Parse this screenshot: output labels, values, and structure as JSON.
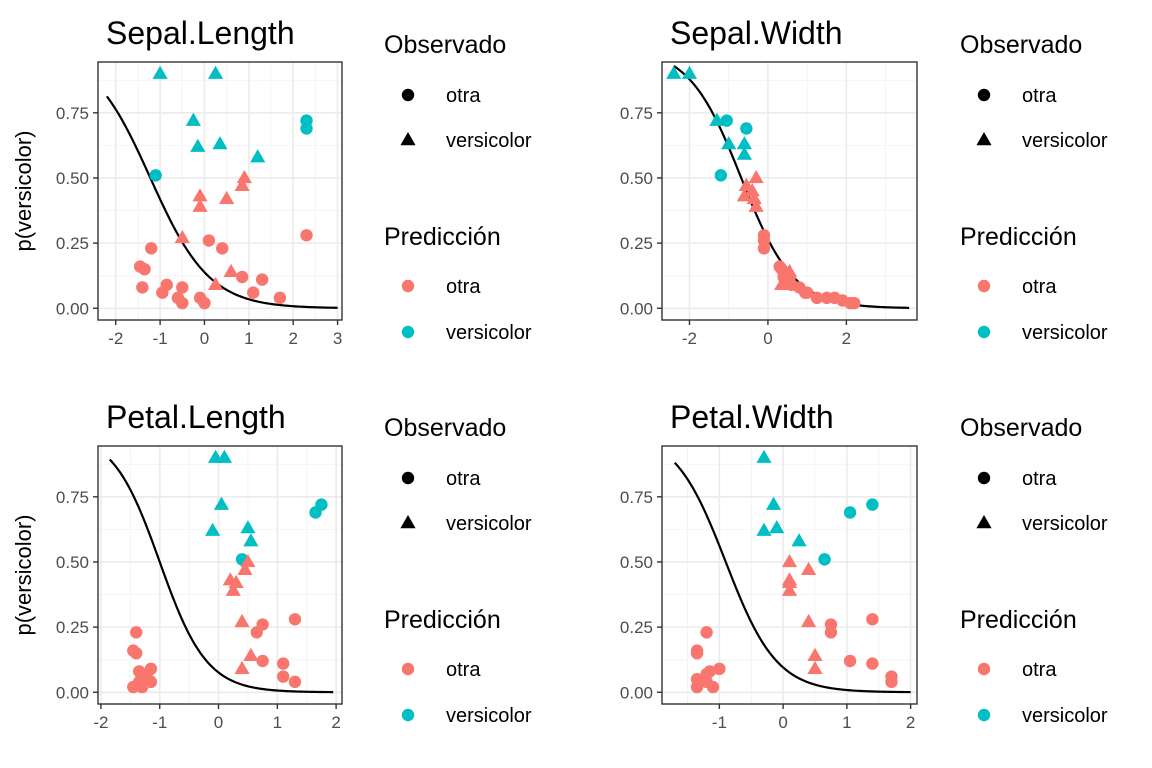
{
  "colors": {
    "otra": "#F8766D",
    "versicolor": "#00BFC4",
    "curve": "#000000",
    "grid_major": "#ebebeb",
    "grid_minor": "#f4f4f4",
    "border": "#333333"
  },
  "y_label": "p(versicolor)",
  "legend": {
    "observed_title": "Observado",
    "predicted_title": "Predicción",
    "items": [
      "otra",
      "versicolor"
    ]
  },
  "chart_data": [
    {
      "type": "scatter",
      "title": "Sepal.Length",
      "ylabel": "p(versicolor)",
      "xlim": [
        -2.4,
        3.1
      ],
      "ylim": [
        -0.045,
        0.945
      ],
      "xticks": [
        -2,
        -1,
        0,
        1,
        2,
        3
      ],
      "yticks": [
        0,
        0.25,
        0.5,
        0.75
      ],
      "ytick_labels": [
        "0.00",
        "0.25",
        "0.50",
        "0.75"
      ],
      "grid": true,
      "legend_placement": "right",
      "curve": {
        "a": -1.22,
        "b": -1.5,
        "x_range": [
          -2.2,
          3.0
        ]
      },
      "points": [
        {
          "x": -1.0,
          "y": 0.9,
          "obs": "versicolor",
          "pred": "versicolor"
        },
        {
          "x": 0.25,
          "y": 0.9,
          "obs": "versicolor",
          "pred": "versicolor"
        },
        {
          "x": -0.25,
          "y": 0.72,
          "obs": "versicolor",
          "pred": "versicolor"
        },
        {
          "x": -0.15,
          "y": 0.62,
          "obs": "versicolor",
          "pred": "versicolor"
        },
        {
          "x": 0.35,
          "y": 0.63,
          "obs": "versicolor",
          "pred": "versicolor"
        },
        {
          "x": 1.2,
          "y": 0.58,
          "obs": "versicolor",
          "pred": "versicolor"
        },
        {
          "x": 2.3,
          "y": 0.72,
          "obs": "otra",
          "pred": "versicolor"
        },
        {
          "x": 2.3,
          "y": 0.69,
          "obs": "otra",
          "pred": "versicolor"
        },
        {
          "x": -1.1,
          "y": 0.51,
          "obs": "otra",
          "pred": "versicolor"
        },
        {
          "x": 0.9,
          "y": 0.5,
          "obs": "versicolor",
          "pred": "otra"
        },
        {
          "x": 0.85,
          "y": 0.47,
          "obs": "versicolor",
          "pred": "otra"
        },
        {
          "x": -0.1,
          "y": 0.43,
          "obs": "versicolor",
          "pred": "otra"
        },
        {
          "x": 0.5,
          "y": 0.42,
          "obs": "versicolor",
          "pred": "otra"
        },
        {
          "x": -0.1,
          "y": 0.39,
          "obs": "versicolor",
          "pred": "otra"
        },
        {
          "x": -0.5,
          "y": 0.27,
          "obs": "versicolor",
          "pred": "otra"
        },
        {
          "x": 0.6,
          "y": 0.14,
          "obs": "versicolor",
          "pred": "otra"
        },
        {
          "x": 0.25,
          "y": 0.09,
          "obs": "versicolor",
          "pred": "otra"
        },
        {
          "x": 2.3,
          "y": 0.28,
          "obs": "otra",
          "pred": "otra"
        },
        {
          "x": 0.1,
          "y": 0.26,
          "obs": "otra",
          "pred": "otra"
        },
        {
          "x": -1.2,
          "y": 0.23,
          "obs": "otra",
          "pred": "otra"
        },
        {
          "x": 0.4,
          "y": 0.23,
          "obs": "otra",
          "pred": "otra"
        },
        {
          "x": -1.45,
          "y": 0.16,
          "obs": "otra",
          "pred": "otra"
        },
        {
          "x": -1.35,
          "y": 0.15,
          "obs": "otra",
          "pred": "otra"
        },
        {
          "x": 0.85,
          "y": 0.12,
          "obs": "otra",
          "pred": "otra"
        },
        {
          "x": 1.3,
          "y": 0.11,
          "obs": "otra",
          "pred": "otra"
        },
        {
          "x": -0.85,
          "y": 0.09,
          "obs": "otra",
          "pred": "otra"
        },
        {
          "x": -1.4,
          "y": 0.08,
          "obs": "otra",
          "pred": "otra"
        },
        {
          "x": -0.5,
          "y": 0.08,
          "obs": "otra",
          "pred": "otra"
        },
        {
          "x": -0.95,
          "y": 0.06,
          "obs": "otra",
          "pred": "otra"
        },
        {
          "x": 1.1,
          "y": 0.06,
          "obs": "otra",
          "pred": "otra"
        },
        {
          "x": -0.6,
          "y": 0.04,
          "obs": "otra",
          "pred": "otra"
        },
        {
          "x": -0.1,
          "y": 0.04,
          "obs": "otra",
          "pred": "otra"
        },
        {
          "x": 1.7,
          "y": 0.04,
          "obs": "otra",
          "pred": "otra"
        },
        {
          "x": -0.5,
          "y": 0.02,
          "obs": "otra",
          "pred": "otra"
        },
        {
          "x": 0.0,
          "y": 0.02,
          "obs": "otra",
          "pred": "otra"
        }
      ]
    },
    {
      "type": "scatter",
      "title": "Sepal.Width",
      "ylabel": "",
      "xlim": [
        -2.7,
        3.8
      ],
      "ylim": [
        -0.045,
        0.945
      ],
      "xticks": [
        -2,
        0,
        2
      ],
      "yticks": [
        0,
        0.25,
        0.5,
        0.75
      ],
      "ytick_labels": [
        "0.00",
        "0.25",
        "0.50",
        "0.75"
      ],
      "grid": true,
      "legend_placement": "right",
      "curve": {
        "a": -0.68,
        "b": -1.5,
        "x_range": [
          -2.4,
          3.6
        ]
      },
      "points": [
        {
          "x": -2.4,
          "y": 0.9,
          "obs": "versicolor",
          "pred": "versicolor"
        },
        {
          "x": -2.0,
          "y": 0.9,
          "obs": "versicolor",
          "pred": "versicolor"
        },
        {
          "x": -1.3,
          "y": 0.72,
          "obs": "versicolor",
          "pred": "versicolor"
        },
        {
          "x": -1.05,
          "y": 0.72,
          "obs": "otra",
          "pred": "versicolor"
        },
        {
          "x": -0.55,
          "y": 0.69,
          "obs": "otra",
          "pred": "versicolor"
        },
        {
          "x": -1.0,
          "y": 0.63,
          "obs": "versicolor",
          "pred": "versicolor"
        },
        {
          "x": -0.6,
          "y": 0.63,
          "obs": "versicolor",
          "pred": "versicolor"
        },
        {
          "x": -0.6,
          "y": 0.59,
          "obs": "versicolor",
          "pred": "versicolor"
        },
        {
          "x": -1.2,
          "y": 0.51,
          "obs": "otra",
          "pred": "versicolor"
        },
        {
          "x": -0.3,
          "y": 0.5,
          "obs": "versicolor",
          "pred": "otra"
        },
        {
          "x": -0.55,
          "y": 0.47,
          "obs": "versicolor",
          "pred": "otra"
        },
        {
          "x": -0.4,
          "y": 0.45,
          "obs": "versicolor",
          "pred": "otra"
        },
        {
          "x": -0.6,
          "y": 0.43,
          "obs": "versicolor",
          "pred": "otra"
        },
        {
          "x": -0.35,
          "y": 0.42,
          "obs": "versicolor",
          "pred": "otra"
        },
        {
          "x": -0.3,
          "y": 0.39,
          "obs": "versicolor",
          "pred": "otra"
        },
        {
          "x": -0.1,
          "y": 0.28,
          "obs": "otra",
          "pred": "otra"
        },
        {
          "x": -0.1,
          "y": 0.26,
          "obs": "otra",
          "pred": "otra"
        },
        {
          "x": -0.1,
          "y": 0.23,
          "obs": "otra",
          "pred": "otra"
        },
        {
          "x": 0.3,
          "y": 0.16,
          "obs": "otra",
          "pred": "otra"
        },
        {
          "x": 0.35,
          "y": 0.15,
          "obs": "otra",
          "pred": "otra"
        },
        {
          "x": 0.55,
          "y": 0.14,
          "obs": "versicolor",
          "pred": "otra"
        },
        {
          "x": 0.4,
          "y": 0.12,
          "obs": "otra",
          "pred": "otra"
        },
        {
          "x": 0.55,
          "y": 0.11,
          "obs": "otra",
          "pred": "otra"
        },
        {
          "x": 0.35,
          "y": 0.09,
          "obs": "versicolor",
          "pred": "otra"
        },
        {
          "x": 0.6,
          "y": 0.09,
          "obs": "otra",
          "pred": "otra"
        },
        {
          "x": 0.8,
          "y": 0.08,
          "obs": "otra",
          "pred": "otra"
        },
        {
          "x": 0.95,
          "y": 0.06,
          "obs": "otra",
          "pred": "otra"
        },
        {
          "x": 1.0,
          "y": 0.06,
          "obs": "otra",
          "pred": "otra"
        },
        {
          "x": 1.25,
          "y": 0.04,
          "obs": "otra",
          "pred": "otra"
        },
        {
          "x": 1.5,
          "y": 0.04,
          "obs": "otra",
          "pred": "otra"
        },
        {
          "x": 1.7,
          "y": 0.04,
          "obs": "otra",
          "pred": "otra"
        },
        {
          "x": 1.9,
          "y": 0.03,
          "obs": "otra",
          "pred": "otra"
        },
        {
          "x": 2.1,
          "y": 0.02,
          "obs": "otra",
          "pred": "otra"
        },
        {
          "x": 2.2,
          "y": 0.02,
          "obs": "otra",
          "pred": "otra"
        }
      ]
    },
    {
      "type": "scatter",
      "title": "Petal.Length",
      "ylabel": "p(versicolor)",
      "xlim": [
        -2.05,
        2.1
      ],
      "ylim": [
        -0.045,
        0.945
      ],
      "xticks": [
        -2,
        -1,
        0,
        1,
        2
      ],
      "yticks": [
        0,
        0.25,
        0.5,
        0.75
      ],
      "ytick_labels": [
        "0.00",
        "0.25",
        "0.50",
        "0.75"
      ],
      "grid": true,
      "legend_placement": "right",
      "curve": {
        "a": -1.0,
        "b": -2.5,
        "x_range": [
          -1.85,
          1.95
        ]
      },
      "points": [
        {
          "x": -0.05,
          "y": 0.9,
          "obs": "versicolor",
          "pred": "versicolor"
        },
        {
          "x": 0.1,
          "y": 0.9,
          "obs": "versicolor",
          "pred": "versicolor"
        },
        {
          "x": 0.05,
          "y": 0.72,
          "obs": "versicolor",
          "pred": "versicolor"
        },
        {
          "x": -0.1,
          "y": 0.62,
          "obs": "versicolor",
          "pred": "versicolor"
        },
        {
          "x": 0.5,
          "y": 0.63,
          "obs": "versicolor",
          "pred": "versicolor"
        },
        {
          "x": 0.55,
          "y": 0.58,
          "obs": "versicolor",
          "pred": "versicolor"
        },
        {
          "x": 1.75,
          "y": 0.72,
          "obs": "otra",
          "pred": "versicolor"
        },
        {
          "x": 1.65,
          "y": 0.69,
          "obs": "otra",
          "pred": "versicolor"
        },
        {
          "x": 0.4,
          "y": 0.51,
          "obs": "otra",
          "pred": "versicolor"
        },
        {
          "x": 0.5,
          "y": 0.5,
          "obs": "versicolor",
          "pred": "otra"
        },
        {
          "x": 0.45,
          "y": 0.47,
          "obs": "versicolor",
          "pred": "otra"
        },
        {
          "x": 0.2,
          "y": 0.43,
          "obs": "versicolor",
          "pred": "otra"
        },
        {
          "x": 0.3,
          "y": 0.42,
          "obs": "versicolor",
          "pred": "otra"
        },
        {
          "x": 0.25,
          "y": 0.39,
          "obs": "versicolor",
          "pred": "otra"
        },
        {
          "x": 0.4,
          "y": 0.27,
          "obs": "versicolor",
          "pred": "otra"
        },
        {
          "x": 0.55,
          "y": 0.14,
          "obs": "versicolor",
          "pred": "otra"
        },
        {
          "x": 0.4,
          "y": 0.09,
          "obs": "versicolor",
          "pred": "otra"
        },
        {
          "x": 1.3,
          "y": 0.28,
          "obs": "otra",
          "pred": "otra"
        },
        {
          "x": 0.75,
          "y": 0.26,
          "obs": "otra",
          "pred": "otra"
        },
        {
          "x": 0.65,
          "y": 0.23,
          "obs": "otra",
          "pred": "otra"
        },
        {
          "x": -1.4,
          "y": 0.23,
          "obs": "otra",
          "pred": "otra"
        },
        {
          "x": -1.45,
          "y": 0.16,
          "obs": "otra",
          "pred": "otra"
        },
        {
          "x": -1.4,
          "y": 0.15,
          "obs": "otra",
          "pred": "otra"
        },
        {
          "x": 0.75,
          "y": 0.12,
          "obs": "otra",
          "pred": "otra"
        },
        {
          "x": 1.1,
          "y": 0.11,
          "obs": "otra",
          "pred": "otra"
        },
        {
          "x": -1.15,
          "y": 0.09,
          "obs": "otra",
          "pred": "otra"
        },
        {
          "x": -1.35,
          "y": 0.08,
          "obs": "otra",
          "pred": "otra"
        },
        {
          "x": -1.3,
          "y": 0.06,
          "obs": "otra",
          "pred": "otra"
        },
        {
          "x": 1.1,
          "y": 0.06,
          "obs": "otra",
          "pred": "otra"
        },
        {
          "x": -1.2,
          "y": 0.05,
          "obs": "otra",
          "pred": "otra"
        },
        {
          "x": -1.35,
          "y": 0.04,
          "obs": "otra",
          "pred": "otra"
        },
        {
          "x": -1.15,
          "y": 0.04,
          "obs": "otra",
          "pred": "otra"
        },
        {
          "x": 1.3,
          "y": 0.04,
          "obs": "otra",
          "pred": "otra"
        },
        {
          "x": -1.45,
          "y": 0.02,
          "obs": "otra",
          "pred": "otra"
        },
        {
          "x": -1.3,
          "y": 0.02,
          "obs": "otra",
          "pred": "otra"
        }
      ]
    },
    {
      "type": "scatter",
      "title": "Petal.Width",
      "ylabel": "",
      "xlim": [
        -1.9,
        2.1
      ],
      "ylim": [
        -0.045,
        0.945
      ],
      "xticks": [
        -1,
        0,
        1,
        2
      ],
      "yticks": [
        0,
        0.25,
        0.5,
        0.75
      ],
      "ytick_labels": [
        "0.00",
        "0.25",
        "0.50",
        "0.75"
      ],
      "grid": true,
      "legend_placement": "right",
      "curve": {
        "a": -0.9,
        "b": -2.5,
        "x_range": [
          -1.7,
          2.0
        ]
      },
      "points": [
        {
          "x": -0.3,
          "y": 0.9,
          "obs": "versicolor",
          "pred": "versicolor"
        },
        {
          "x": -0.15,
          "y": 0.72,
          "obs": "versicolor",
          "pred": "versicolor"
        },
        {
          "x": -0.3,
          "y": 0.62,
          "obs": "versicolor",
          "pred": "versicolor"
        },
        {
          "x": -0.1,
          "y": 0.63,
          "obs": "versicolor",
          "pred": "versicolor"
        },
        {
          "x": 0.25,
          "y": 0.58,
          "obs": "versicolor",
          "pred": "versicolor"
        },
        {
          "x": 1.4,
          "y": 0.72,
          "obs": "otra",
          "pred": "versicolor"
        },
        {
          "x": 1.05,
          "y": 0.69,
          "obs": "otra",
          "pred": "versicolor"
        },
        {
          "x": 0.65,
          "y": 0.51,
          "obs": "otra",
          "pred": "versicolor"
        },
        {
          "x": 0.1,
          "y": 0.5,
          "obs": "versicolor",
          "pred": "otra"
        },
        {
          "x": 0.4,
          "y": 0.47,
          "obs": "versicolor",
          "pred": "otra"
        },
        {
          "x": 0.1,
          "y": 0.43,
          "obs": "versicolor",
          "pred": "otra"
        },
        {
          "x": 0.1,
          "y": 0.42,
          "obs": "versicolor",
          "pred": "otra"
        },
        {
          "x": 0.1,
          "y": 0.39,
          "obs": "versicolor",
          "pred": "otra"
        },
        {
          "x": 0.4,
          "y": 0.27,
          "obs": "versicolor",
          "pred": "otra"
        },
        {
          "x": 0.5,
          "y": 0.14,
          "obs": "versicolor",
          "pred": "otra"
        },
        {
          "x": 0.5,
          "y": 0.09,
          "obs": "versicolor",
          "pred": "otra"
        },
        {
          "x": 1.4,
          "y": 0.28,
          "obs": "otra",
          "pred": "otra"
        },
        {
          "x": 0.75,
          "y": 0.26,
          "obs": "otra",
          "pred": "otra"
        },
        {
          "x": 0.75,
          "y": 0.23,
          "obs": "otra",
          "pred": "otra"
        },
        {
          "x": -1.2,
          "y": 0.23,
          "obs": "otra",
          "pred": "otra"
        },
        {
          "x": -1.35,
          "y": 0.16,
          "obs": "otra",
          "pred": "otra"
        },
        {
          "x": -1.35,
          "y": 0.15,
          "obs": "otra",
          "pred": "otra"
        },
        {
          "x": 1.05,
          "y": 0.12,
          "obs": "otra",
          "pred": "otra"
        },
        {
          "x": 1.4,
          "y": 0.11,
          "obs": "otra",
          "pred": "otra"
        },
        {
          "x": -1.0,
          "y": 0.09,
          "obs": "otra",
          "pred": "otra"
        },
        {
          "x": -1.15,
          "y": 0.08,
          "obs": "otra",
          "pred": "otra"
        },
        {
          "x": -1.2,
          "y": 0.07,
          "obs": "otra",
          "pred": "otra"
        },
        {
          "x": 1.7,
          "y": 0.06,
          "obs": "otra",
          "pred": "otra"
        },
        {
          "x": -1.35,
          "y": 0.05,
          "obs": "otra",
          "pred": "otra"
        },
        {
          "x": -1.2,
          "y": 0.04,
          "obs": "otra",
          "pred": "otra"
        },
        {
          "x": 1.7,
          "y": 0.04,
          "obs": "otra",
          "pred": "otra"
        },
        {
          "x": -1.35,
          "y": 0.02,
          "obs": "otra",
          "pred": "otra"
        },
        {
          "x": -1.1,
          "y": 0.02,
          "obs": "otra",
          "pred": "otra"
        }
      ]
    }
  ]
}
